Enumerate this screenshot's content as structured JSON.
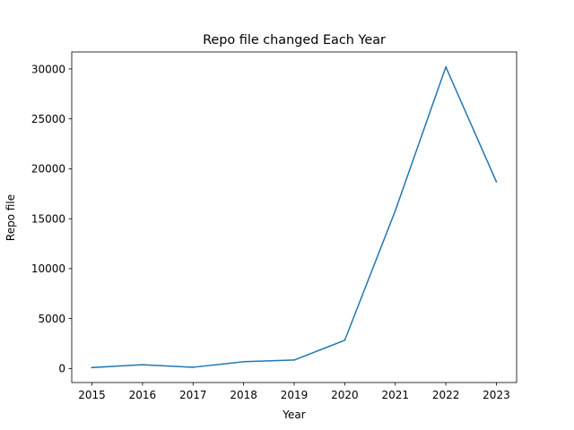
{
  "chart_data": {
    "type": "line",
    "title": "Repo file changed Each Year",
    "xlabel": "Year",
    "ylabel": "Repo file",
    "x": [
      2015,
      2016,
      2017,
      2018,
      2019,
      2020,
      2021,
      2022,
      2023
    ],
    "x_ticks": [
      "2015",
      "2016",
      "2017",
      "2018",
      "2019",
      "2020",
      "2021",
      "2022",
      "2023"
    ],
    "y_ticks": [
      "0",
      "5000",
      "10000",
      "15000",
      "20000",
      "25000",
      "30000"
    ],
    "series": [
      {
        "values": [
          100,
          380,
          130,
          680,
          850,
          2830,
          15800,
          30200,
          18700
        ],
        "color": "#1f77b4"
      }
    ],
    "xlim": [
      2014.6,
      2023.4
    ],
    "ylim": [
      -1400,
      31700
    ],
    "grid": false,
    "legend": false
  }
}
